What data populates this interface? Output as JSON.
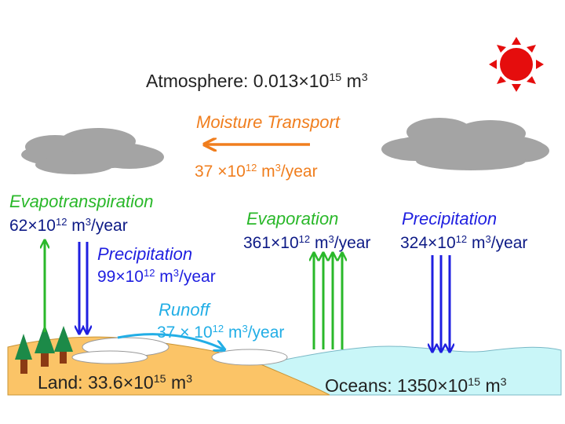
{
  "atmosphere": {
    "label": "Atmosphere: 0.013×10",
    "exp": "15",
    "unit": " m",
    "unit_exp": "3"
  },
  "moisture_transport": {
    "title": "Moisture Transport",
    "value": "37 ×10",
    "exp": "12",
    "unit": " m",
    "unit_exp": "3",
    "suffix": "/year"
  },
  "evapotranspiration": {
    "title": "Evapotranspiration",
    "value": "62×10",
    "exp": "12",
    "unit": " m",
    "unit_exp": "3",
    "suffix": "/year"
  },
  "land_precipitation": {
    "title": "Precipitation",
    "value": "99×10",
    "exp": "12",
    "unit": " m",
    "unit_exp": "3",
    "suffix": "/year"
  },
  "evaporation": {
    "title": "Evaporation",
    "value": "361×10",
    "exp": "12",
    "unit": " m",
    "unit_exp": "3",
    "suffix": "/year"
  },
  "ocean_precipitation": {
    "title": "Precipitation",
    "value": "324×10",
    "exp": "12",
    "unit": " m",
    "unit_exp": "3",
    "suffix": "/year"
  },
  "runoff": {
    "title": "Runoff",
    "value": "37 × 10",
    "exp": "12",
    "unit": " m",
    "unit_exp": "3",
    "suffix": "/year"
  },
  "land": {
    "label": "Land: 33.6×10",
    "exp": "15",
    "unit": " m",
    "unit_exp": "3"
  },
  "oceans": {
    "label": "Oceans: 1350×10",
    "exp": "15",
    "unit": " m",
    "unit_exp": "3"
  },
  "colors": {
    "precipitation": "#1f1fe0",
    "evaporation": "#2ab82a",
    "moisture_transport": "#f07e1e",
    "runoff": "#22aee6",
    "land": "#fbc467",
    "ocean": "#c9f6f8",
    "cloud": "#a4a4a4",
    "sun": "#e50d0d",
    "tree": "#1c8a48",
    "trunk": "#8b3a14"
  },
  "icons": [
    "sun-icon",
    "cloud-icon",
    "tree-icon",
    "arrow-icon"
  ]
}
